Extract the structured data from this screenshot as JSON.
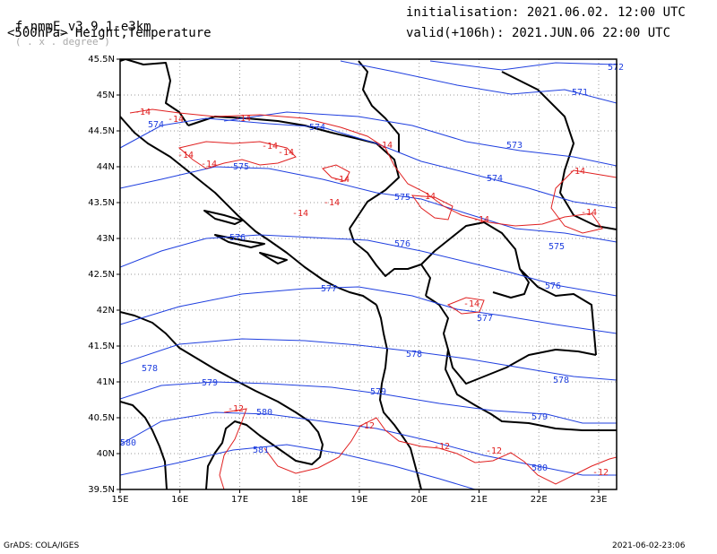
{
  "header": {
    "model": "f-nmmE_v3.9.1-e3km",
    "grid_note": "( . x . degree )",
    "field": "<500hPa> Height,Temperature",
    "init": "initialisation: 2021.06.02. 12:00 UTC",
    "valid": "valid(+106h): 2021.JUN.06 22:00 UTC"
  },
  "footer": {
    "left": "GrADS: COLA/IGES",
    "right": "2021-06-02-23:06"
  },
  "map": {
    "lon_range": [
      15,
      23.3
    ],
    "lat_range": [
      39.5,
      45.5
    ],
    "lon_ticks": [
      "15E",
      "16E",
      "17E",
      "18E",
      "19E",
      "20E",
      "21E",
      "22E",
      "23E"
    ],
    "lat_ticks": [
      "39.5N",
      "40N",
      "40.5N",
      "41N",
      "41.5N",
      "42N",
      "42.5N",
      "43N",
      "43.5N",
      "44N",
      "44.5N",
      "45N",
      "45.5N"
    ],
    "colors": {
      "height": "#1f3fdf",
      "temperature": "#e02020",
      "border": "#000000",
      "grid": "#999999"
    },
    "height_contour_labels": [
      "571",
      "572",
      "573",
      "574",
      "575",
      "576",
      "577",
      "578",
      "579",
      "580",
      "581"
    ],
    "temperature_contour_labels": [
      "-14",
      "-12"
    ]
  }
}
